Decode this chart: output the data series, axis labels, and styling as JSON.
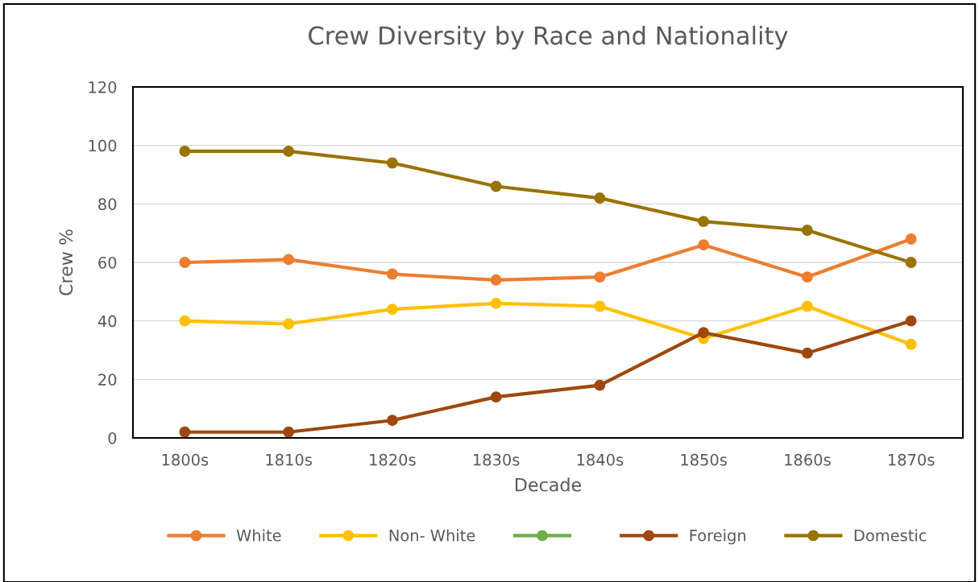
{
  "chart_data": {
    "type": "line",
    "title": "Crew Diversity by Race and Nationality",
    "xlabel": "Decade",
    "ylabel": "Crew %",
    "categories": [
      "1800s",
      "1810s",
      "1820s",
      "1830s",
      "1840s",
      "1850s",
      "1860s",
      "1870s"
    ],
    "series": [
      {
        "name": "White",
        "color": "#ed7d31",
        "values": [
          60,
          61,
          56,
          54,
          55,
          66,
          55,
          68
        ]
      },
      {
        "name": "Non- White",
        "color": "#ffc000",
        "values": [
          40,
          39,
          44,
          46,
          45,
          34,
          45,
          32
        ]
      },
      {
        "color": "#70ad47",
        "values": [
          null,
          null,
          null,
          null,
          null,
          null,
          null,
          null
        ]
      },
      {
        "name": "Foreign",
        "color": "#9e480e",
        "values": [
          2,
          2,
          6,
          14,
          18,
          36,
          29,
          40
        ]
      },
      {
        "name": "Domestic",
        "color": "#997300",
        "values": [
          98,
          98,
          94,
          86,
          82,
          74,
          71,
          60
        ]
      }
    ],
    "ylim": [
      0,
      120
    ],
    "yticks": [
      0,
      20,
      40,
      60,
      80,
      100,
      120
    ],
    "grid": "y",
    "legend": "bottom",
    "marker": "circle",
    "line_style": "solid"
  }
}
